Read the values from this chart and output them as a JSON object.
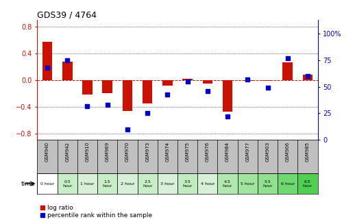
{
  "title": "GDS39 / 4764",
  "samples": [
    "GSM940",
    "GSM942",
    "GSM910",
    "GSM969",
    "GSM970",
    "GSM973",
    "GSM974",
    "GSM975",
    "GSM976",
    "GSM984",
    "GSM977",
    "GSM903",
    "GSM906",
    "GSM985"
  ],
  "time_labels": [
    "0 hour",
    "0.5\nhour",
    "1 hour",
    "1.5\nhour",
    "2 hour",
    "2.5\nhour",
    "3 hour",
    "3.5\nhour",
    "4 hour",
    "4.5\nhour",
    "5 hour",
    "5.5\nhour",
    "6 hour",
    "6.5\nhour"
  ],
  "log_ratio": [
    0.58,
    0.28,
    -0.22,
    -0.2,
    -0.46,
    -0.35,
    -0.08,
    0.02,
    -0.05,
    -0.47,
    -0.01,
    -0.01,
    0.27,
    0.08
  ],
  "percentile": [
    68,
    75,
    32,
    33,
    10,
    25,
    43,
    55,
    46,
    22,
    57,
    49,
    77,
    60
  ],
  "time_colors": [
    "#ffffff",
    "#c8eec8",
    "#d8f0d8",
    "#c8eec8",
    "#d8f0d8",
    "#c8eec8",
    "#d8f0d8",
    "#c0ecc0",
    "#d8f0d8",
    "#b0e8b0",
    "#a0e4a0",
    "#90e090",
    "#70d870",
    "#50d050"
  ],
  "ylim_left": [
    -0.9,
    0.9
  ],
  "ylim_right": [
    0,
    112.5
  ],
  "y_ticks_left": [
    -0.8,
    -0.4,
    0.0,
    0.4,
    0.8
  ],
  "y_ticks_right": [
    0,
    25,
    50,
    75,
    100
  ],
  "bar_color": "#cc1100",
  "dot_color": "#0000cc",
  "legend_log": "log ratio",
  "legend_pct": "percentile rank within the sample",
  "header_bg": "#c0c0c0",
  "time_label": "time"
}
